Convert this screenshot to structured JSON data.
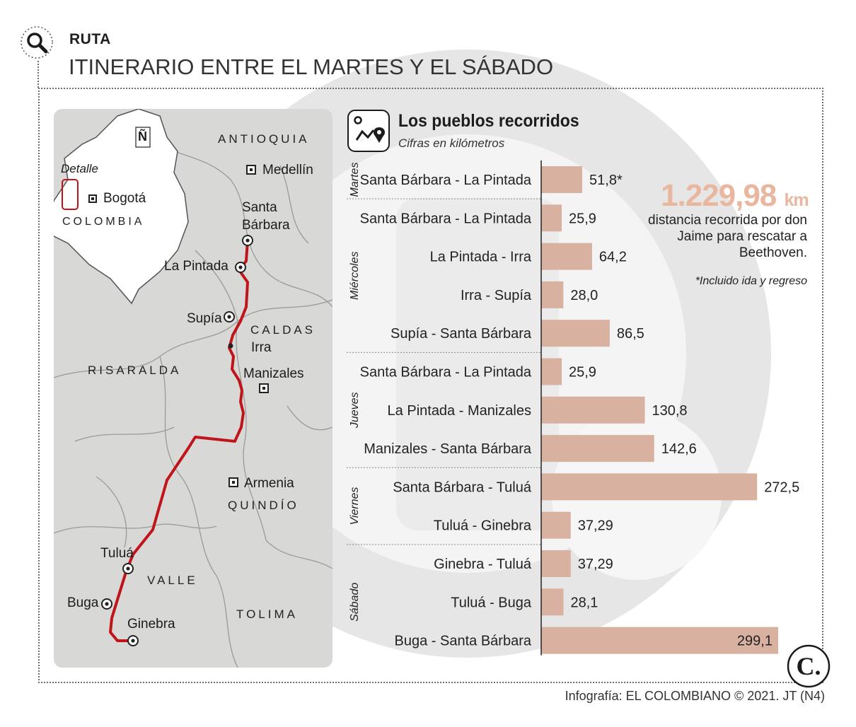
{
  "header": {
    "kicker": "RUTA",
    "title": "ITINERARIO ENTRE EL MARTES Y EL SÁBADO",
    "icon": "magnifier-icon"
  },
  "map": {
    "detail_label": "Detalle",
    "country_label": "COLOMBIA",
    "capital_label": "Bogotá",
    "north_label": "Ñ",
    "regions": [
      "ANTIOQUIA",
      "CALDAS",
      "RISARALDA",
      "QUINDÍO",
      "VALLE",
      "TOLIMA"
    ],
    "places": [
      "Medellín",
      "Santa",
      "Bárbara",
      "La Pintada",
      "Supía",
      "Irra",
      "Manizales",
      "Armenia",
      "Tuluá",
      "Buga",
      "Ginebra"
    ],
    "route_color": "#c0141b"
  },
  "panel": {
    "title": "Los pueblos recorridos",
    "subtitle": "Cifras en kilómetros",
    "icon": "route-pin-icon"
  },
  "chart_data": {
    "type": "bar",
    "orientation": "horizontal",
    "unit": "km",
    "bar_color": "#d8b1a1",
    "groups": [
      {
        "day": "Martes",
        "items": [
          {
            "label": "Santa Bárbara - La Pintada",
            "value": 51.8,
            "display": "51,8*"
          }
        ]
      },
      {
        "day": "Miércoles",
        "items": [
          {
            "label": "Santa Bárbara - La Pintada",
            "value": 25.9,
            "display": "25,9"
          },
          {
            "label": "La Pintada - Irra",
            "value": 64.2,
            "display": "64,2"
          },
          {
            "label": "Irra - Supía",
            "value": 28.0,
            "display": "28,0"
          },
          {
            "label": "Supía - Santa Bárbara",
            "value": 86.5,
            "display": "86,5"
          }
        ]
      },
      {
        "day": "Jueves",
        "items": [
          {
            "label": "Santa Bárbara - La Pintada",
            "value": 25.9,
            "display": "25,9"
          },
          {
            "label": "La Pintada - Manizales",
            "value": 130.8,
            "display": "130,8"
          },
          {
            "label": "Manizales - Santa Bárbara",
            "value": 142.6,
            "display": "142,6"
          }
        ]
      },
      {
        "day": "Viernes",
        "items": [
          {
            "label": "Santa Bárbara - Tuluá",
            "value": 272.5,
            "display": "272,5"
          },
          {
            "label": "Tuluá - Ginebra",
            "value": 37.29,
            "display": "37,29"
          }
        ]
      },
      {
        "day": "Sábado",
        "items": [
          {
            "label": "Ginebra - Tuluá",
            "value": 37.29,
            "display": "37,29"
          },
          {
            "label": "Tuluá - Buga",
            "value": 28.1,
            "display": "28,1"
          },
          {
            "label": "Buga - Santa Bárbara",
            "value": 299.1,
            "display": "299,1"
          }
        ]
      }
    ]
  },
  "summary": {
    "total_value": "1.229,98",
    "total_unit": "km",
    "total_color": "#e9b79f",
    "description": "distancia recorrida por don Jaime para rescatar a Beethoven.",
    "footnote": "*Incluido ida y regreso"
  },
  "footer": {
    "credit": "Infografía: EL COLOMBIANO © 2021. JT (N4)",
    "logo_text": "C.",
    "logo_icon": "el-colombiano-logo-icon"
  }
}
